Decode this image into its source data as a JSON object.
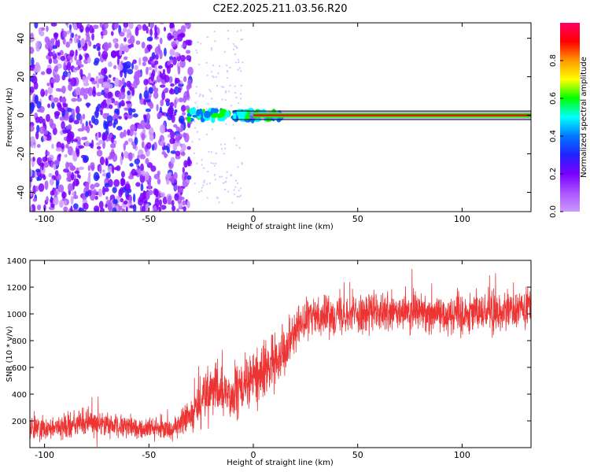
{
  "title": "C2E2.2025.211.03.56.R20",
  "chart_data": [
    {
      "type": "heatmap",
      "xlabel": "Height of straight line (km)",
      "ylabel": "Frequency (Hz)",
      "xlim": [
        -107,
        133
      ],
      "ylim": [
        -50,
        48
      ],
      "xticks": [
        -100,
        -50,
        0,
        50,
        100
      ],
      "yticks": [
        -40,
        -20,
        0,
        20,
        40
      ],
      "colorbar": {
        "label": "Normalized spectral amplitude",
        "range": [
          0,
          1
        ],
        "ticks": [
          0.0,
          0.2,
          0.4,
          0.6,
          0.8
        ],
        "colors": [
          "#cc99ff",
          "#aa55ff",
          "#7a00ff",
          "#2222ff",
          "#0077ff",
          "#00ffff",
          "#00ff00",
          "#ffff00",
          "#ff9900",
          "#ff0000",
          "#ff0066"
        ]
      },
      "regions": [
        {
          "x": [
            -107,
            -31
          ],
          "description_values": {
            "freq_spread_hz": [
              -50,
              48
            ],
            "amplitude": [
              0.0,
              0.3
            ]
          }
        },
        {
          "x": [
            -31,
            0
          ],
          "description_values": {
            "freq_spread_hz": [
              -3,
              3
            ],
            "amplitude": [
              0.3,
              0.55
            ]
          }
        },
        {
          "x": [
            0,
            133
          ],
          "description_values": {
            "freq_center_hz": 0,
            "amplitude": [
              0.7,
              1.0
            ]
          }
        }
      ],
      "grid": false
    },
    {
      "type": "line",
      "xlabel": "Height of straight line (km)",
      "ylabel": "SNR (10 * v/v)",
      "xlim": [
        -107,
        133
      ],
      "ylim": [
        0,
        1400
      ],
      "xticks": [
        -100,
        -50,
        0,
        50,
        100
      ],
      "yticks": [
        200,
        400,
        600,
        800,
        1000,
        1200,
        1400
      ],
      "series": [
        {
          "color": "#ee3333",
          "x": [
            -107,
            -100,
            -90,
            -80,
            -70,
            -60,
            -50,
            -45,
            -40,
            -35,
            -30,
            -25,
            -20,
            -15,
            -10,
            -5,
            0,
            5,
            10,
            15,
            20,
            25,
            30,
            40,
            50,
            60,
            70,
            80,
            90,
            100,
            110,
            120,
            133
          ],
          "mean": [
            140,
            150,
            160,
            190,
            170,
            150,
            140,
            135,
            140,
            170,
            250,
            350,
            420,
            420,
            380,
            450,
            520,
            560,
            650,
            760,
            880,
            950,
            990,
            1000,
            1000,
            1010,
            1000,
            1020,
            1000,
            1010,
            1020,
            1020,
            1030
          ],
          "spread": [
            90,
            90,
            95,
            110,
            100,
            90,
            90,
            80,
            90,
            110,
            160,
            200,
            230,
            210,
            190,
            200,
            210,
            210,
            200,
            190,
            170,
            150,
            150,
            150,
            150,
            150,
            150,
            160,
            150,
            160,
            160,
            170,
            170
          ]
        }
      ],
      "grid": false
    }
  ]
}
